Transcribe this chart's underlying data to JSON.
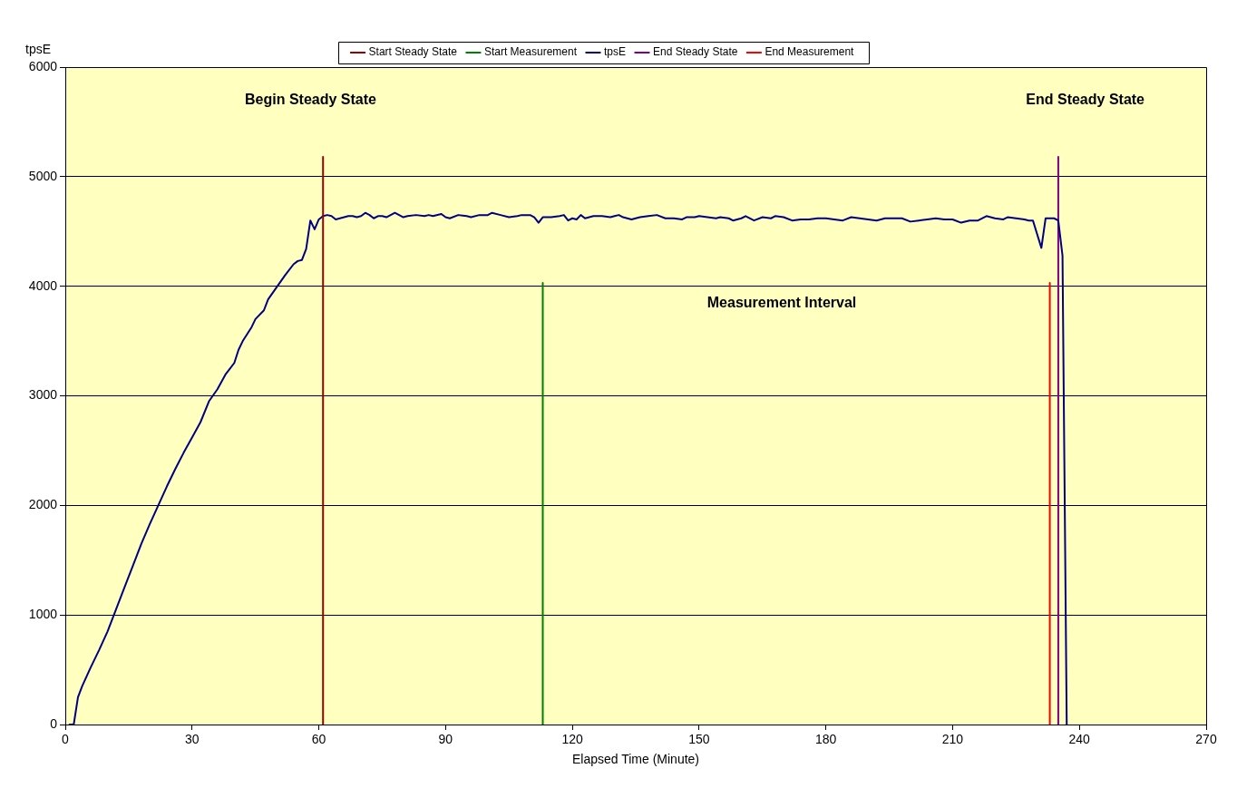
{
  "chart_data": {
    "type": "line",
    "xlabel": "Elapsed Time (Minute)",
    "ylabel": "tpsE",
    "xlim": [
      0,
      270
    ],
    "xticks": [
      0,
      30,
      60,
      90,
      120,
      150,
      180,
      210,
      240,
      270
    ],
    "ylim": [
      0,
      6000
    ],
    "yticks": [
      0,
      1000,
      2000,
      3000,
      4000,
      5000,
      6000
    ],
    "grid": "y",
    "legend": "top",
    "marker": "none",
    "line_style": "solid",
    "annotations": [
      "Begin Steady State",
      "End Steady State",
      "Measurement Interval"
    ],
    "series": [
      {
        "name": "Start Steady State",
        "color": "#990000",
        "x": [
          61,
          61
        ],
        "values": [
          0,
          5180
        ]
      },
      {
        "name": "Start Measurement",
        "color": "#008000",
        "x": [
          113,
          113
        ],
        "values": [
          0,
          4030
        ]
      },
      {
        "name": "tpsE",
        "color": "#000080",
        "x": [
          1,
          2,
          3,
          4,
          6,
          8,
          10,
          12,
          14,
          16,
          18,
          20,
          22,
          24,
          26,
          28,
          30,
          32,
          34,
          36,
          38,
          40,
          41,
          42,
          44,
          45,
          47,
          48,
          50,
          52,
          54,
          55,
          56,
          57,
          58,
          59,
          60,
          61,
          62,
          63,
          64,
          65,
          66,
          67,
          68,
          69,
          70,
          71,
          72,
          73,
          74,
          75,
          76,
          77,
          78,
          79,
          80,
          81,
          83,
          85,
          86,
          87,
          89,
          90,
          91,
          93,
          95,
          96,
          98,
          100,
          101,
          103,
          105,
          107,
          108,
          110,
          111,
          112,
          113,
          115,
          117,
          118,
          119,
          120,
          121,
          122,
          123,
          125,
          127,
          129,
          130,
          131,
          132,
          134,
          136,
          138,
          140,
          142,
          144,
          146,
          147,
          149,
          150,
          152,
          154,
          155,
          157,
          158,
          160,
          161,
          163,
          165,
          167,
          168,
          170,
          172,
          174,
          176,
          178,
          180,
          182,
          184,
          186,
          188,
          190,
          192,
          194,
          196,
          198,
          200,
          202,
          204,
          206,
          208,
          210,
          212,
          214,
          216,
          218,
          220,
          222,
          223,
          225,
          227,
          228,
          229,
          231,
          232,
          233,
          234,
          235,
          236,
          237
        ],
        "values": [
          0,
          0,
          250,
          350,
          520,
          680,
          850,
          1050,
          1250,
          1450,
          1650,
          1830,
          2000,
          2170,
          2330,
          2480,
          2620,
          2760,
          2950,
          3060,
          3200,
          3300,
          3420,
          3500,
          3620,
          3700,
          3780,
          3880,
          3990,
          4100,
          4200,
          4230,
          4240,
          4340,
          4600,
          4520,
          4610,
          4640,
          4650,
          4640,
          4610,
          4620,
          4630,
          4640,
          4640,
          4630,
          4640,
          4670,
          4650,
          4620,
          4640,
          4640,
          4630,
          4650,
          4670,
          4650,
          4630,
          4640,
          4650,
          4640,
          4650,
          4640,
          4660,
          4630,
          4620,
          4650,
          4640,
          4630,
          4650,
          4650,
          4670,
          4650,
          4630,
          4640,
          4650,
          4650,
          4630,
          4580,
          4630,
          4630,
          4640,
          4650,
          4600,
          4620,
          4610,
          4650,
          4620,
          4640,
          4640,
          4630,
          4640,
          4650,
          4630,
          4610,
          4630,
          4640,
          4650,
          4620,
          4620,
          4610,
          4630,
          4630,
          4640,
          4630,
          4620,
          4630,
          4620,
          4600,
          4620,
          4640,
          4600,
          4630,
          4620,
          4640,
          4630,
          4600,
          4610,
          4610,
          4620,
          4620,
          4610,
          4600,
          4630,
          4620,
          4610,
          4600,
          4620,
          4620,
          4620,
          4590,
          4600,
          4610,
          4620,
          4610,
          4610,
          4580,
          4600,
          4600,
          4640,
          4620,
          4610,
          4630,
          4620,
          4610,
          4600,
          4600,
          4350,
          4620,
          4620,
          4620,
          4600,
          4280,
          0
        ]
      },
      {
        "name": "End Steady State",
        "color": "#800080",
        "x": [
          235,
          235
        ],
        "values": [
          0,
          5180
        ]
      },
      {
        "name": "End Measurement",
        "color": "#ff0000",
        "x": [
          233,
          233
        ],
        "values": [
          0,
          4030
        ]
      }
    ]
  }
}
